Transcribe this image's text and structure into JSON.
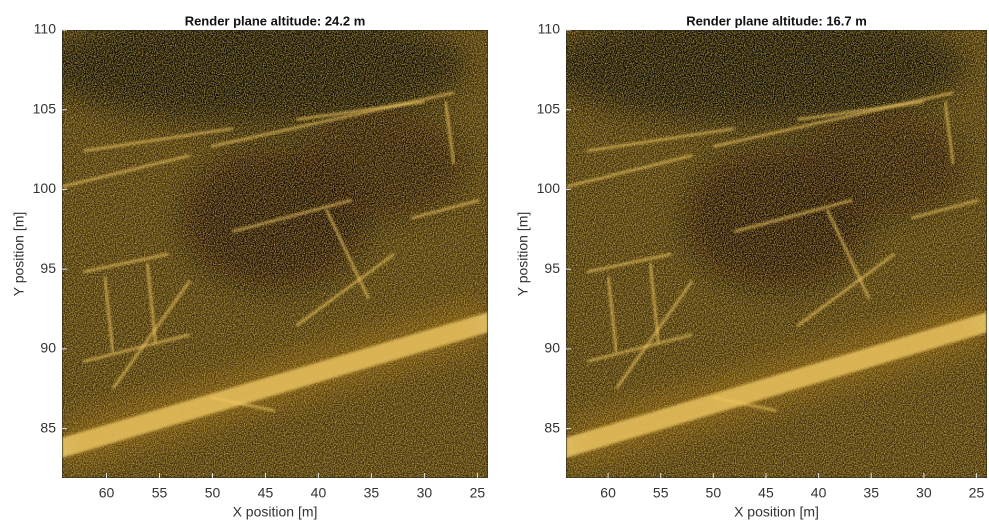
{
  "chart_data": [
    {
      "type": "image",
      "title": "Render plane altitude: 24.2 m",
      "xlabel": "X position [m]",
      "ylabel": "Y position [m]",
      "xlim": [
        64.2,
        24
      ],
      "ylim": [
        81.9,
        110
      ],
      "xticks": [
        60,
        55,
        50,
        45,
        40,
        35,
        30,
        25
      ],
      "yticks": [
        85,
        90,
        95,
        100,
        105,
        110
      ]
    },
    {
      "type": "image",
      "title": "Render plane altitude: 16.7 m",
      "xlabel": "X position [m]",
      "ylabel": "Y position [m]",
      "xlim": [
        64,
        24
      ],
      "ylim": [
        81.9,
        110
      ],
      "xticks": [
        60,
        55,
        50,
        45,
        40,
        35,
        30,
        25
      ],
      "yticks": [
        85,
        90,
        95,
        100,
        105,
        110
      ]
    }
  ]
}
